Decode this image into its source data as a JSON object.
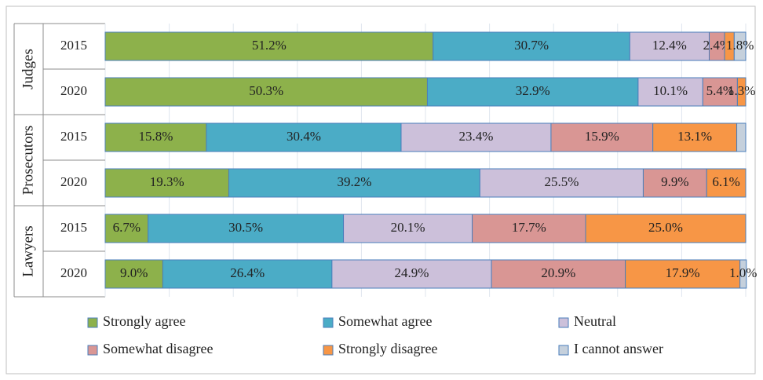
{
  "chart_data": {
    "type": "stacked-bar-horizontal",
    "groups": [
      "Judges",
      "Prosecutors",
      "Lawyers"
    ],
    "categories": [
      "2015",
      "2020",
      "2015",
      "2020",
      "2015",
      "2020"
    ],
    "xlim": [
      0,
      100
    ],
    "xticks": [
      0,
      10,
      20,
      30,
      40,
      50,
      60,
      70,
      80,
      90,
      100
    ],
    "grid": true,
    "series": [
      {
        "name": "Strongly agree",
        "color": "#8db14b",
        "values": [
          51.2,
          50.3,
          15.8,
          19.3,
          6.7,
          9.0
        ],
        "value_labels": [
          "51.2%",
          "50.3%",
          "15.8%",
          "19.3%",
          "6.7%",
          "9.0%"
        ]
      },
      {
        "name": "Somewhat agree",
        "color": "#4bacc6",
        "values": [
          30.7,
          32.9,
          30.4,
          39.2,
          30.5,
          26.4
        ],
        "value_labels": [
          "30.7%",
          "32.9%",
          "30.4%",
          "39.2%",
          "30.5%",
          "26.4%"
        ]
      },
      {
        "name": "Neutral",
        "color": "#ccc0da",
        "values": [
          12.4,
          10.1,
          23.4,
          25.5,
          20.1,
          24.9
        ],
        "value_labels": [
          "12.4%",
          "10.1%",
          "23.4%",
          "25.5%",
          "20.1%",
          "24.9%"
        ]
      },
      {
        "name": "Somewhat disagree",
        "color": "#d99694",
        "values": [
          2.4,
          5.4,
          15.9,
          9.9,
          17.7,
          20.9
        ],
        "value_labels": [
          "2.4%",
          "5.4%",
          "15.9%",
          "9.9%",
          "17.7%",
          "20.9%"
        ]
      },
      {
        "name": "Strongly disagree",
        "color": "#f79646",
        "values": [
          1.5,
          1.3,
          13.1,
          6.1,
          25.0,
          17.9
        ],
        "value_labels": [
          null,
          "1.3%",
          "13.1%",
          "6.1%",
          "25.0%",
          "17.9%"
        ]
      },
      {
        "name": "I cannot answer",
        "color": "#c5d0dc",
        "values": [
          1.8,
          0,
          1.4,
          0,
          0,
          1.0
        ],
        "value_labels": [
          "1.8%",
          null,
          null,
          null,
          null,
          "1.0%"
        ]
      }
    ]
  }
}
